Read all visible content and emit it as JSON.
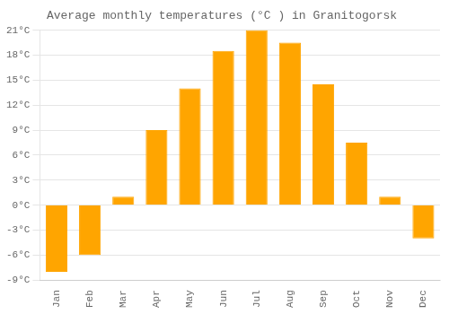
{
  "chart_data": {
    "type": "bar",
    "title": "Average monthly temperatures (°C ) in Granitogorsk",
    "categories": [
      "Jan",
      "Feb",
      "Mar",
      "Apr",
      "May",
      "Jun",
      "Jul",
      "Aug",
      "Sep",
      "Oct",
      "Nov",
      "Dec"
    ],
    "values": [
      -8.0,
      -6.0,
      1.0,
      9.0,
      14.0,
      18.5,
      21.0,
      19.5,
      14.5,
      7.5,
      1.0,
      -4.0
    ],
    "color": "#FFA500",
    "ylim": [
      -9,
      21
    ],
    "yticks": [
      {
        "value": -9,
        "label": "-9°C"
      },
      {
        "value": -6,
        "label": "-6°C"
      },
      {
        "value": -3,
        "label": "-3°C"
      },
      {
        "value": 0,
        "label": "0°C"
      },
      {
        "value": 3,
        "label": "3°C"
      },
      {
        "value": 6,
        "label": "6°C"
      },
      {
        "value": 9,
        "label": "9°C"
      },
      {
        "value": 12,
        "label": "12°C"
      },
      {
        "value": 15,
        "label": "15°C"
      },
      {
        "value": 18,
        "label": "18°C"
      },
      {
        "value": 21,
        "label": "21°C"
      }
    ],
    "grid": true
  }
}
